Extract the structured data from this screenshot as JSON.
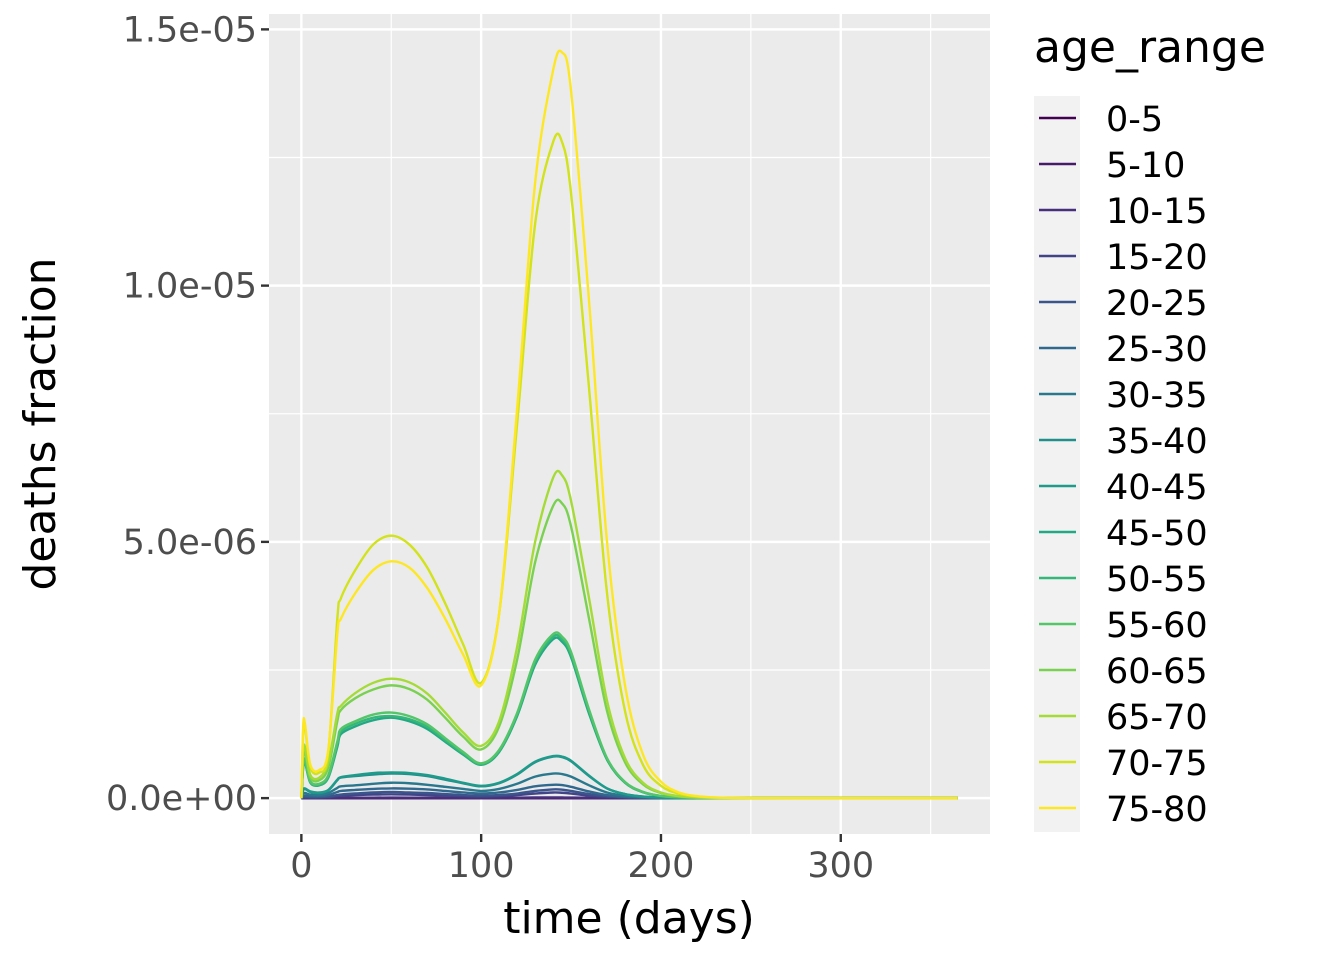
{
  "chart_data": {
    "type": "line",
    "xlabel": "time (days)",
    "ylabel": "deaths fraction",
    "xlim": [
      -18,
      383
    ],
    "ylim": [
      -7e-07,
      1.53e-05
    ],
    "x_ticks": [
      0,
      100,
      200,
      300
    ],
    "x_tick_labels": [
      "0",
      "100",
      "200",
      "300"
    ],
    "y_ticks": [
      0,
      5e-06,
      1e-05,
      1.5e-05
    ],
    "y_tick_labels": [
      "0.0e+00",
      "5.0e-06",
      "1.0e-05",
      "1.5e-05"
    ],
    "grid": true,
    "background": "#ebebeb",
    "legend": {
      "title": "age_range",
      "position": "right"
    },
    "profile_x": [
      0,
      1,
      2,
      5,
      10,
      15,
      20,
      22,
      30,
      40,
      50,
      60,
      70,
      80,
      90,
      100,
      110,
      120,
      130,
      140,
      145,
      150,
      160,
      170,
      180,
      190,
      200,
      210,
      220,
      230,
      240,
      260,
      280,
      300,
      330,
      365
    ],
    "series": [
      {
        "name": "0-5",
        "color": "#440154",
        "values": [
          0,
          0,
          0,
          0,
          0,
          0,
          0,
          0,
          0,
          0,
          0,
          0,
          0,
          0,
          0,
          0,
          0,
          0,
          0,
          0,
          0,
          0,
          0,
          0,
          0,
          0,
          0,
          0,
          0,
          0,
          0,
          0,
          0,
          0,
          0,
          0
        ]
      },
      {
        "name": "5-10",
        "color": "#481a6c",
        "values": [
          0,
          0,
          0,
          0,
          0,
          0,
          0,
          0,
          0,
          0,
          0,
          0,
          0,
          0,
          0,
          0,
          0,
          0,
          0,
          0,
          0,
          0,
          0,
          0,
          0,
          0,
          0,
          0,
          0,
          0,
          0,
          0,
          0,
          0,
          0,
          0
        ]
      },
      {
        "name": "10-15",
        "color": "#472f7d",
        "values": [
          0,
          2e-09,
          3e-09,
          2e-09,
          2e-09,
          3e-09,
          5e-09,
          6e-09,
          8e-09,
          9e-09,
          1e-08,
          9e-09,
          8e-09,
          7e-09,
          6e-09,
          5e-09,
          6e-09,
          9e-09,
          1.2e-08,
          1.3e-08,
          1.2e-08,
          1e-08,
          6e-09,
          3e-09,
          1e-09,
          0,
          0,
          0,
          0,
          0,
          0,
          0,
          0,
          0,
          0,
          0
        ]
      },
      {
        "name": "15-20",
        "color": "#414487",
        "values": [
          0,
          1e-08,
          1.2e-08,
          1e-08,
          1e-08,
          2e-08,
          4e-08,
          5e-08,
          6e-08,
          7e-08,
          7.5e-08,
          7e-08,
          6e-08,
          5e-08,
          4e-08,
          3e-08,
          4e-08,
          6e-08,
          9e-08,
          1.1e-07,
          1.05e-07,
          9e-08,
          5e-08,
          2.5e-08,
          1e-08,
          4e-09,
          1.5e-09,
          0,
          0,
          0,
          0,
          0,
          0,
          0,
          0,
          0
        ]
      },
      {
        "name": "20-25",
        "color": "#3a548c",
        "values": [
          0,
          2e-08,
          2.5e-08,
          2e-08,
          2e-08,
          3e-08,
          6e-08,
          7e-08,
          9e-08,
          1.1e-07,
          1.2e-07,
          1.1e-07,
          1e-07,
          8e-08,
          6e-08,
          5e-08,
          6e-08,
          9e-08,
          1.4e-07,
          1.7e-07,
          1.65e-07,
          1.4e-07,
          8e-08,
          4e-08,
          1.6e-08,
          6e-09,
          2e-09,
          0,
          0,
          0,
          0,
          0,
          0,
          0,
          0,
          0
        ]
      },
      {
        "name": "25-30",
        "color": "#31688e",
        "values": [
          0,
          4e-08,
          5e-08,
          4e-08,
          4e-08,
          6e-08,
          1.2e-07,
          1.4e-07,
          1.6e-07,
          1.8e-07,
          1.9e-07,
          1.85e-07,
          1.7e-07,
          1.4e-07,
          1.1e-07,
          9e-08,
          1.1e-07,
          1.6e-07,
          2.3e-07,
          2.6e-07,
          2.55e-07,
          2.2e-07,
          1.3e-07,
          6e-08,
          2.5e-08,
          1e-08,
          3e-09,
          1e-09,
          0,
          0,
          0,
          0,
          0,
          0,
          0,
          0
        ]
      },
      {
        "name": "30-35",
        "color": "#2a788e",
        "values": [
          0,
          8e-08,
          1e-07,
          7e-08,
          6e-08,
          1e-07,
          2e-07,
          2.3e-07,
          2.5e-07,
          2.8e-07,
          3e-07,
          2.9e-07,
          2.6e-07,
          2.2e-07,
          1.8e-07,
          1.4e-07,
          1.8e-07,
          2.8e-07,
          4.2e-07,
          4.8e-07,
          4.7e-07,
          4.2e-07,
          2.5e-07,
          1.1e-07,
          4.5e-08,
          1.8e-08,
          6e-09,
          2e-09,
          0,
          0,
          0,
          0,
          0,
          0,
          0,
          0
        ]
      },
      {
        "name": "35-40",
        "color": "#21908d",
        "values": [
          0,
          1.5e-07,
          1.8e-07,
          1.2e-07,
          1e-07,
          1.5e-07,
          3.5e-07,
          4e-07,
          4.3e-07,
          4.6e-07,
          4.8e-07,
          4.7e-07,
          4.3e-07,
          3.6e-07,
          2.9e-07,
          2.3e-07,
          2.9e-07,
          4.6e-07,
          7e-07,
          8.1e-07,
          8e-07,
          7.2e-07,
          4.3e-07,
          1.9e-07,
          7.8e-08,
          3e-08,
          1e-08,
          3e-09,
          1e-09,
          0,
          0,
          0,
          0,
          0,
          0,
          0
        ]
      },
      {
        "name": "40-45",
        "color": "#1e9b8a",
        "values": [
          0,
          1.6e-07,
          1.9e-07,
          1.3e-07,
          1.1e-07,
          1.6e-07,
          3.6e-07,
          4.1e-07,
          4.5e-07,
          4.9e-07,
          5e-07,
          4.9e-07,
          4.5e-07,
          3.8e-07,
          3e-07,
          2.4e-07,
          3e-07,
          4.7e-07,
          7.1e-07,
          8.2e-07,
          8.1e-07,
          7.3e-07,
          4.4e-07,
          1.9e-07,
          8e-08,
          3e-08,
          1e-08,
          3e-09,
          1e-09,
          0,
          0,
          0,
          0,
          0,
          0,
          0
        ]
      },
      {
        "name": "45-50",
        "color": "#22a884",
        "values": [
          0,
          6e-07,
          7e-07,
          3e-07,
          2.5e-07,
          4e-07,
          1e-06,
          1.25e-06,
          1.4e-06,
          1.52e-06,
          1.57e-06,
          1.5e-06,
          1.35e-06,
          1.1e-06,
          8.5e-07,
          6.5e-07,
          9e-07,
          1.6e-06,
          2.6e-06,
          3.1e-06,
          3.05e-06,
          2.75e-06,
          1.65e-06,
          7.5e-07,
          3e-07,
          1.15e-07,
          4e-08,
          1.4e-08,
          5e-09,
          1.5e-09,
          0,
          0,
          0,
          0,
          0,
          0
        ]
      },
      {
        "name": "50-55",
        "color": "#35b779",
        "values": [
          0,
          6.2e-07,
          7.2e-07,
          3.1e-07,
          2.6e-07,
          4.2e-07,
          1.05e-06,
          1.3e-06,
          1.45e-06,
          1.57e-06,
          1.6e-06,
          1.54e-06,
          1.39e-06,
          1.13e-06,
          8.7e-07,
          6.6e-07,
          9.2e-07,
          1.63e-06,
          2.65e-06,
          3.15e-06,
          3.1e-06,
          2.8e-06,
          1.7e-06,
          7.7e-07,
          3.1e-07,
          1.2e-07,
          4.2e-08,
          1.5e-08,
          5e-09,
          1.5e-09,
          0,
          0,
          0,
          0,
          0,
          0
        ]
      },
      {
        "name": "55-60",
        "color": "#54c568",
        "values": [
          0,
          6.5e-07,
          7.5e-07,
          3.3e-07,
          2.8e-07,
          4.5e-07,
          1.1e-06,
          1.35e-06,
          1.5e-06,
          1.63e-06,
          1.67e-06,
          1.6e-06,
          1.44e-06,
          1.17e-06,
          9e-07,
          6.8e-07,
          9.4e-07,
          1.66e-06,
          2.7e-06,
          3.2e-06,
          3.15e-06,
          2.85e-06,
          1.73e-06,
          7.8e-07,
          3.15e-07,
          1.22e-07,
          4.3e-08,
          1.5e-08,
          5e-09,
          1.5e-09,
          0,
          0,
          0,
          0,
          0,
          0
        ]
      },
      {
        "name": "60-65",
        "color": "#7ad151",
        "values": [
          0,
          8e-07,
          9e-07,
          4e-07,
          3.5e-07,
          6e-07,
          1.5e-06,
          1.72e-06,
          1.95e-06,
          2.12e-06,
          2.2e-06,
          2.13e-06,
          1.92e-06,
          1.57e-06,
          1.2e-06,
          9.5e-07,
          1.4e-06,
          2.7e-06,
          4.6e-06,
          5.7e-06,
          5.75e-06,
          5.3e-06,
          3.5e-06,
          1.7e-06,
          7e-07,
          2.7e-07,
          1e-07,
          3.5e-08,
          1.2e-08,
          4e-09,
          1e-09,
          0,
          0,
          0,
          0,
          0
        ]
      },
      {
        "name": "65-70",
        "color": "#a5db36",
        "values": [
          0,
          9e-07,
          1e-06,
          4.5e-07,
          4e-07,
          7e-07,
          1.65e-06,
          1.8e-06,
          2.05e-06,
          2.25e-06,
          2.33e-06,
          2.26e-06,
          2.04e-06,
          1.67e-06,
          1.28e-06,
          1.02e-06,
          1.5e-06,
          2.95e-06,
          5e-06,
          6.25e-06,
          6.3e-06,
          5.8e-06,
          3.9e-06,
          1.9e-06,
          7.8e-07,
          3e-07,
          1.1e-07,
          3.9e-08,
          1.3e-08,
          4.5e-09,
          1e-09,
          0,
          0,
          0,
          0,
          0
        ]
      },
      {
        "name": "70-75",
        "color": "#d2e21b",
        "values": [
          0,
          1.3e-06,
          1.4e-06,
          6e-07,
          5e-07,
          9e-07,
          3.5e-06,
          3.9e-06,
          4.45e-06,
          4.95e-06,
          5.12e-06,
          4.95e-06,
          4.5e-06,
          3.8e-06,
          3e-06,
          2.25e-06,
          3.6e-06,
          7.3e-06,
          1.12e-05,
          1.28e-05,
          1.28e-05,
          1.18e-05,
          8e-06,
          4e-06,
          1.7e-06,
          6.5e-07,
          2.4e-07,
          8.5e-08,
          3e-08,
          1e-08,
          3.5e-09,
          5e-10,
          0,
          0,
          0,
          0
        ]
      },
      {
        "name": "75-80",
        "color": "#fde725",
        "values": [
          0,
          1.4e-06,
          1.45e-06,
          6.5e-07,
          5.5e-07,
          9.5e-07,
          3.2e-06,
          3.5e-06,
          4e-06,
          4.45e-06,
          4.62e-06,
          4.5e-06,
          4.1e-06,
          3.5e-06,
          2.8e-06,
          2.2e-06,
          3.6e-06,
          7.6e-06,
          1.2e-05,
          1.42e-05,
          1.455e-05,
          1.38e-05,
          9.7e-06,
          5e-06,
          2.2e-06,
          8.5e-07,
          3.2e-07,
          1.1e-07,
          4e-08,
          1.4e-08,
          5e-09,
          7e-10,
          0,
          0,
          0,
          0
        ]
      }
    ]
  }
}
